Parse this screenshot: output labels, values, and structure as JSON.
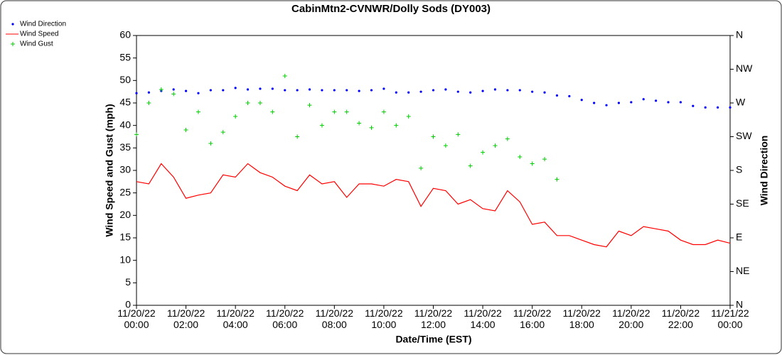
{
  "chart_data": {
    "type": "line",
    "title": "CabinMtn2-CVNWR/Dolly Sods (DY003)",
    "x_label": "Date/Time (EST)",
    "y_label": "Wind Speed and Gust (mph)",
    "y2_label": "Wind Direction",
    "legend": "top-left",
    "x": [
      0,
      0.5,
      1,
      1.5,
      2,
      2.5,
      3,
      3.5,
      4,
      4.5,
      5,
      5.5,
      6,
      6.5,
      7,
      7.5,
      8,
      8.5,
      9,
      9.5,
      10,
      10.5,
      11,
      11.5,
      12,
      12.5,
      13,
      13.5,
      14,
      14.5,
      15,
      15.5,
      16,
      16.5,
      17,
      17.5,
      18,
      18.5,
      19,
      19.5,
      20,
      20.5,
      21,
      21.5,
      22,
      22.5,
      23,
      23.5,
      24
    ],
    "xlim": [
      0,
      24
    ],
    "xticks": [
      {
        "value": 0,
        "label": "11/20/22 00:00"
      },
      {
        "value": 2,
        "label": "11/20/22 02:00"
      },
      {
        "value": 4,
        "label": "11/20/22 04:00"
      },
      {
        "value": 6,
        "label": "11/20/22 06:00"
      },
      {
        "value": 8,
        "label": "11/20/22 08:00"
      },
      {
        "value": 10,
        "label": "11/20/22 10:00"
      },
      {
        "value": 12,
        "label": "11/20/22 12:00"
      },
      {
        "value": 14,
        "label": "11/20/22 14:00"
      },
      {
        "value": 16,
        "label": "11/20/22 16:00"
      },
      {
        "value": 18,
        "label": "11/20/22 18:00"
      },
      {
        "value": 20,
        "label": "11/20/22 20:00"
      },
      {
        "value": 22,
        "label": "11/20/22 22:00"
      },
      {
        "value": 24,
        "label": "11/21/22 00:00"
      }
    ],
    "ylim": [
      0,
      60
    ],
    "yticks": [
      0,
      5,
      10,
      15,
      20,
      25,
      30,
      35,
      40,
      45,
      50,
      55,
      60
    ],
    "y2lim": [
      0,
      360
    ],
    "y2ticks": [
      {
        "value": 0,
        "label": "N"
      },
      {
        "value": 45,
        "label": "NE"
      },
      {
        "value": 90,
        "label": "E"
      },
      {
        "value": 135,
        "label": "SE"
      },
      {
        "value": 180,
        "label": "S"
      },
      {
        "value": 225,
        "label": "SW"
      },
      {
        "value": 270,
        "label": "W"
      },
      {
        "value": 315,
        "label": "NW"
      },
      {
        "value": 360,
        "label": "N"
      }
    ],
    "series": [
      {
        "name": "Wind Direction",
        "color": "#0000ff",
        "style": "dot",
        "axis": "y2",
        "values": [
          283,
          284,
          286,
          288,
          286,
          283,
          287,
          287,
          290,
          288,
          289,
          289,
          287,
          287,
          288,
          287,
          287,
          287,
          286,
          287,
          289,
          284,
          284,
          285,
          287,
          288,
          285,
          284,
          286,
          288,
          287,
          287,
          285,
          284,
          280,
          279,
          274,
          270,
          267,
          270,
          271,
          275,
          273,
          271,
          271,
          266,
          264,
          264,
          264
        ]
      },
      {
        "name": "Wind Speed",
        "color": "#ff0000",
        "style": "line",
        "values": [
          27.5,
          27,
          31.5,
          28.5,
          23.8,
          24.5,
          25,
          29,
          28.5,
          31.5,
          29.5,
          28.5,
          26.5,
          25.5,
          29,
          27,
          27.5,
          24,
          27,
          27,
          26.5,
          28,
          27.5,
          22,
          26,
          25.5,
          22.5,
          23.5,
          21.5,
          21,
          25.5,
          23,
          18,
          18.5,
          15.5,
          15.5,
          14.5,
          13.5,
          13,
          16.5,
          15.5,
          17.5,
          17,
          16.5,
          14.5,
          13.5,
          13.5,
          14.5,
          13.8
        ]
      },
      {
        "name": "Wind Gust",
        "color": "#00cc00",
        "style": "plus",
        "values": [
          38,
          45,
          48,
          47,
          39,
          43,
          36,
          38.5,
          42,
          45,
          45,
          43,
          51,
          37.5,
          44.5,
          40,
          43,
          43,
          40.5,
          39.5,
          43,
          40,
          42,
          30.5,
          37.5,
          35.5,
          38,
          31,
          34,
          35.5,
          37,
          33,
          31.5,
          32.5,
          28,
          null,
          null,
          null,
          null,
          null,
          null,
          null,
          null,
          null,
          null,
          null,
          null,
          null,
          null
        ]
      }
    ]
  }
}
